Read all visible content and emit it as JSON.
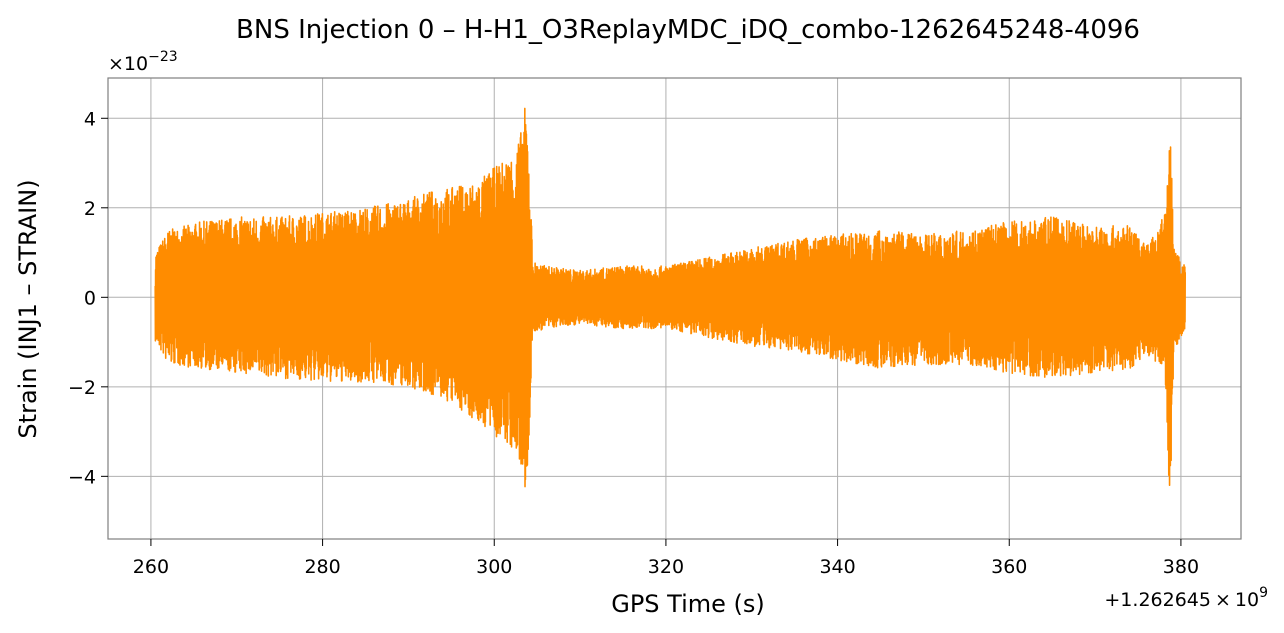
{
  "chart_data": {
    "type": "line",
    "title": "BNS Injection 0 – H-H1_O3ReplayMDC_iDQ_combo-1262645248-4096",
    "xlabel": "GPS Time (s)",
    "ylabel": "Strain (INJ1 – STRAIN)",
    "x_offset_label": "+1.262645 × 10^9",
    "y_scale_label": "×10^−23",
    "xlim": [
      255,
      387
    ],
    "ylim": [
      -5.4,
      4.9
    ],
    "x_ticks": [
      260,
      280,
      300,
      320,
      340,
      360,
      380
    ],
    "y_ticks": [
      -4,
      -2,
      0,
      2,
      4
    ],
    "grid": true,
    "series": [
      {
        "color": "#ff8c00",
        "envelope": {
          "x": [
            260.5,
            262,
            266,
            270,
            275,
            280,
            285,
            290,
            293,
            296,
            298,
            300,
            302,
            303,
            303.7,
            304.1,
            304.5,
            306,
            310,
            315,
            320,
            325,
            330,
            335,
            340,
            345,
            350,
            355,
            360,
            365,
            370,
            374,
            376,
            377.5,
            378.3,
            378.7,
            379.2,
            380.5
          ],
          "upper": [
            1.0,
            1.5,
            1.7,
            1.8,
            1.8,
            1.9,
            2.0,
            2.2,
            2.4,
            2.5,
            2.6,
            2.9,
            3.2,
            3.6,
            4.4,
            3.0,
            0.8,
            0.7,
            0.6,
            0.7,
            0.7,
            0.9,
            1.1,
            1.3,
            1.4,
            1.5,
            1.4,
            1.5,
            1.7,
            1.8,
            1.6,
            1.6,
            1.2,
            1.5,
            2.2,
            4.2,
            1.1,
            0.7
          ],
          "lower": [
            -1.0,
            -1.5,
            -1.6,
            -1.7,
            -1.8,
            -1.9,
            -1.9,
            -2.0,
            -2.2,
            -2.5,
            -2.8,
            -3.1,
            -3.4,
            -3.8,
            -4.5,
            -3.0,
            -0.8,
            -0.7,
            -0.6,
            -0.7,
            -0.7,
            -0.9,
            -1.1,
            -1.2,
            -1.4,
            -1.6,
            -1.5,
            -1.5,
            -1.7,
            -1.8,
            -1.7,
            -1.6,
            -1.3,
            -1.5,
            -2.3,
            -4.9,
            -1.2,
            -0.7
          ]
        }
      }
    ]
  }
}
